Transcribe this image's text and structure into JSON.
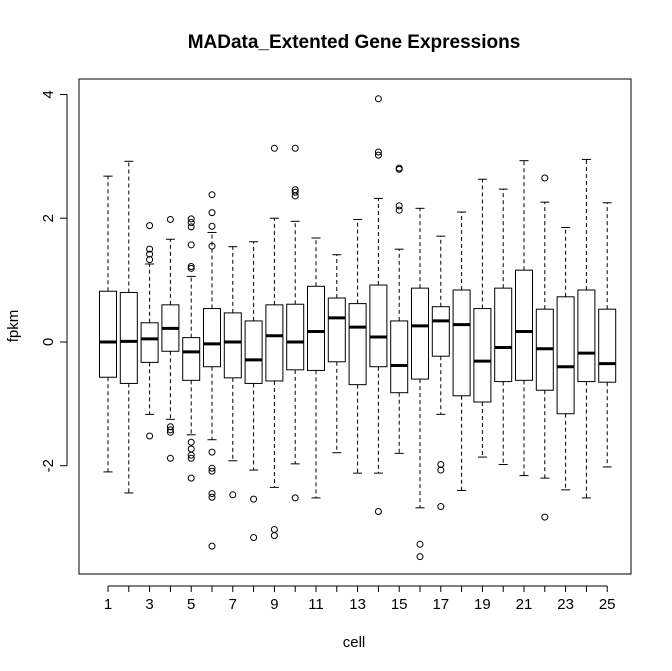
{
  "chart_data": {
    "type": "boxplot",
    "title": "MAData_Extented Gene Expressions",
    "xlabel": "cell",
    "ylabel": "fpkm",
    "ylim": [
      -3.75,
      4.25
    ],
    "y_ticks": [
      -2,
      0,
      2,
      4
    ],
    "x_tick_labels": [
      "1",
      "3",
      "5",
      "7",
      "9",
      "11",
      "13",
      "15",
      "17",
      "19",
      "21",
      "23",
      "25"
    ],
    "grid": false,
    "categories": [
      "1",
      "2",
      "3",
      "4",
      "5",
      "6",
      "7",
      "8",
      "9",
      "10",
      "11",
      "12",
      "13",
      "14",
      "15",
      "16",
      "17",
      "18",
      "19",
      "20",
      "21",
      "22",
      "23",
      "24",
      "25"
    ],
    "boxes": [
      {
        "whisker_low": -2.1,
        "q1": -0.57,
        "median": 0.0,
        "q3": 0.82,
        "whisker_high": 2.68,
        "outliers": []
      },
      {
        "whisker_low": -2.44,
        "q1": -0.67,
        "median": 0.01,
        "q3": 0.8,
        "whisker_high": 2.92,
        "outliers": []
      },
      {
        "whisker_low": -1.17,
        "q1": -0.33,
        "median": 0.05,
        "q3": 0.31,
        "whisker_high": 1.26,
        "outliers": [
          1.88,
          1.5,
          1.42,
          1.33,
          -1.52
        ]
      },
      {
        "whisker_low": -1.25,
        "q1": -0.15,
        "median": 0.22,
        "q3": 0.6,
        "whisker_high": 1.66,
        "outliers": [
          1.98,
          -1.37,
          -1.42,
          -1.46,
          -1.88
        ]
      },
      {
        "whisker_low": -1.5,
        "q1": -0.62,
        "median": -0.16,
        "q3": 0.07,
        "whisker_high": 1.06,
        "outliers": [
          1.99,
          1.93,
          1.86,
          1.57,
          1.22,
          1.19,
          -1.62,
          -1.73,
          -1.83,
          -1.88,
          -2.2
        ]
      },
      {
        "whisker_low": -1.58,
        "q1": -0.4,
        "median": -0.03,
        "q3": 0.54,
        "whisker_high": 1.77,
        "outliers": [
          2.38,
          2.09,
          1.87,
          1.55,
          -1.78,
          -2.04,
          -2.09,
          -2.45,
          -2.51,
          -3.3
        ]
      },
      {
        "whisker_low": -1.92,
        "q1": -0.58,
        "median": 0.0,
        "q3": 0.47,
        "whisker_high": 1.54,
        "outliers": [
          -2.47
        ]
      },
      {
        "whisker_low": -2.07,
        "q1": -0.67,
        "median": -0.29,
        "q3": 0.34,
        "whisker_high": 1.62,
        "outliers": [
          -2.54,
          -3.16
        ]
      },
      {
        "whisker_low": -2.35,
        "q1": -0.63,
        "median": 0.1,
        "q3": 0.6,
        "whisker_high": 2.0,
        "outliers": [
          3.13,
          -3.03,
          -3.13
        ]
      },
      {
        "whisker_low": -1.97,
        "q1": -0.45,
        "median": 0.0,
        "q3": 0.61,
        "whisker_high": 1.95,
        "outliers": [
          3.13,
          2.46,
          2.42,
          2.36,
          -2.52
        ]
      },
      {
        "whisker_low": -2.52,
        "q1": -0.46,
        "median": 0.17,
        "q3": 0.9,
        "whisker_high": 1.68,
        "outliers": []
      },
      {
        "whisker_low": -1.79,
        "q1": -0.32,
        "median": 0.39,
        "q3": 0.71,
        "whisker_high": 1.41,
        "outliers": []
      },
      {
        "whisker_low": -2.12,
        "q1": -0.69,
        "median": 0.24,
        "q3": 0.62,
        "whisker_high": 1.98,
        "outliers": []
      },
      {
        "whisker_low": -2.12,
        "q1": -0.4,
        "median": 0.08,
        "q3": 0.92,
        "whisker_high": 2.32,
        "outliers": [
          3.93,
          3.07,
          3.02,
          -2.74
        ]
      },
      {
        "whisker_low": -1.8,
        "q1": -0.82,
        "median": -0.38,
        "q3": 0.34,
        "whisker_high": 1.5,
        "outliers": [
          2.81,
          2.79,
          2.2,
          2.13
        ]
      },
      {
        "whisker_low": -2.68,
        "q1": -0.6,
        "median": 0.26,
        "q3": 0.87,
        "whisker_high": 2.16,
        "outliers": [
          -3.27,
          -3.47
        ]
      },
      {
        "whisker_low": -1.17,
        "q1": -0.23,
        "median": 0.34,
        "q3": 0.57,
        "whisker_high": 1.71,
        "outliers": [
          -1.98,
          -2.07,
          -2.66
        ]
      },
      {
        "whisker_low": -2.4,
        "q1": -0.87,
        "median": 0.28,
        "q3": 0.84,
        "whisker_high": 2.1,
        "outliers": []
      },
      {
        "whisker_low": -1.86,
        "q1": -0.97,
        "median": -0.31,
        "q3": 0.54,
        "whisker_high": 2.63,
        "outliers": []
      },
      {
        "whisker_low": -1.98,
        "q1": -0.64,
        "median": -0.09,
        "q3": 0.87,
        "whisker_high": 2.47,
        "outliers": []
      },
      {
        "whisker_low": -2.16,
        "q1": -0.62,
        "median": 0.17,
        "q3": 1.16,
        "whisker_high": 2.93,
        "outliers": []
      },
      {
        "whisker_low": -2.2,
        "q1": -0.78,
        "median": -0.11,
        "q3": 0.53,
        "whisker_high": 2.26,
        "outliers": [
          2.65,
          -2.83
        ]
      },
      {
        "whisker_low": -2.39,
        "q1": -1.16,
        "median": -0.4,
        "q3": 0.73,
        "whisker_high": 1.85,
        "outliers": []
      },
      {
        "whisker_low": -2.52,
        "q1": -0.64,
        "median": -0.18,
        "q3": 0.84,
        "whisker_high": 2.95,
        "outliers": []
      },
      {
        "whisker_low": -2.02,
        "q1": -0.65,
        "median": -0.35,
        "q3": 0.53,
        "whisker_high": 2.25,
        "outliers": []
      }
    ]
  }
}
